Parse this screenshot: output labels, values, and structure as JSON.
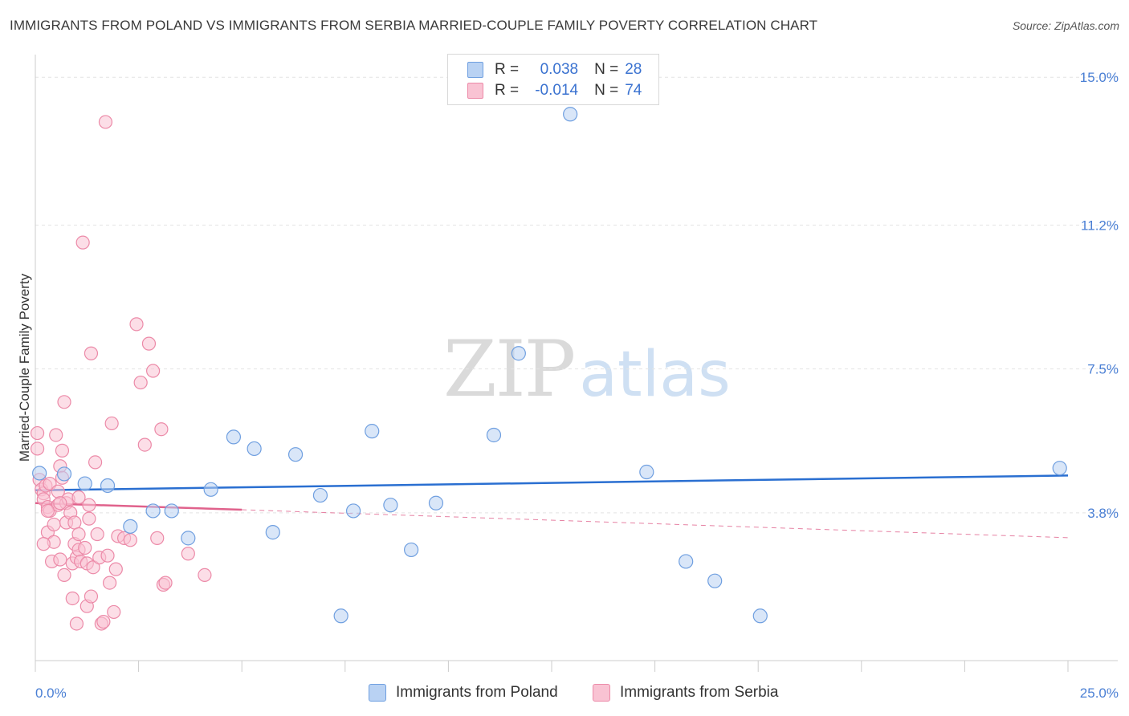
{
  "header": {
    "title": "IMMIGRANTS FROM POLAND VS IMMIGRANTS FROM SERBIA MARRIED-COUPLE FAMILY POVERTY CORRELATION CHART",
    "source": "Source: ZipAtlas.com"
  },
  "watermark": {
    "zip": "ZIP",
    "atlas": "atlas"
  },
  "legend": {
    "poland": {
      "r_label": "R =",
      "r_value": "0.038",
      "n_label": "N =",
      "n_value": "28"
    },
    "serbia": {
      "r_label": "R =",
      "r_value": "-0.014",
      "n_label": "N =",
      "n_value": "74"
    }
  },
  "bottom_legend": {
    "poland": "Immigrants from Poland",
    "serbia": "Immigrants from Serbia"
  },
  "colors": {
    "poland_fill": "#b9d2f3",
    "poland_stroke": "#6f9fe0",
    "poland_line": "#2a6fd1",
    "serbia_fill": "#f9c3d3",
    "serbia_stroke": "#ec8aa8",
    "serbia_line": "#e0628c",
    "grid": "#e4e4e4",
    "tick_text": "#4a7fd4"
  },
  "chart_data": {
    "type": "scatter",
    "title": "IMMIGRANTS FROM POLAND VS IMMIGRANTS FROM SERBIA MARRIED-COUPLE FAMILY POVERTY CORRELATION CHART",
    "xlabel": "",
    "ylabel": "Married-Couple Family Poverty",
    "xlim": [
      0,
      25
    ],
    "ylim": [
      0,
      15.5
    ],
    "x_tick_labels": [
      "0.0%",
      "25.0%"
    ],
    "y_ticks": [
      3.8,
      7.5,
      11.2,
      15.0
    ],
    "y_tick_labels": [
      "3.8%",
      "7.5%",
      "11.2%",
      "15.0%"
    ],
    "grid": true,
    "series": [
      {
        "name": "Immigrants from Poland",
        "trend": {
          "x0": 0,
          "y0": 4.38,
          "x1": 25,
          "y1": 4.76
        },
        "points": [
          [
            0.1,
            4.82
          ],
          [
            0.7,
            4.8
          ],
          [
            1.2,
            4.55
          ],
          [
            1.75,
            4.5
          ],
          [
            2.3,
            3.45
          ],
          [
            2.85,
            3.85
          ],
          [
            3.3,
            3.85
          ],
          [
            3.7,
            3.15
          ],
          [
            4.25,
            4.4
          ],
          [
            4.8,
            5.75
          ],
          [
            5.3,
            5.45
          ],
          [
            5.75,
            3.3
          ],
          [
            6.3,
            5.3
          ],
          [
            6.9,
            4.25
          ],
          [
            7.4,
            1.15
          ],
          [
            7.7,
            3.85
          ],
          [
            8.15,
            5.9
          ],
          [
            8.6,
            4.0
          ],
          [
            9.1,
            2.85
          ],
          [
            9.7,
            4.05
          ],
          [
            11.1,
            5.8
          ],
          [
            11.7,
            7.9
          ],
          [
            12.95,
            14.05
          ],
          [
            14.8,
            4.85
          ],
          [
            15.75,
            2.55
          ],
          [
            16.45,
            2.05
          ],
          [
            17.55,
            1.15
          ],
          [
            24.8,
            4.95
          ]
        ]
      },
      {
        "name": "Immigrants from Serbia",
        "trend_solid": {
          "x0": 0,
          "y0": 4.05,
          "x1": 5.0,
          "y1": 3.88
        },
        "trend_dashed": {
          "x0": 5.0,
          "y0": 3.88,
          "x1": 25,
          "y1": 3.16
        },
        "points": [
          [
            0.05,
            5.85
          ],
          [
            0.05,
            5.45
          ],
          [
            0.1,
            4.65
          ],
          [
            0.15,
            4.4
          ],
          [
            0.2,
            4.3
          ],
          [
            0.2,
            4.15
          ],
          [
            0.25,
            4.5
          ],
          [
            0.3,
            3.95
          ],
          [
            0.3,
            3.3
          ],
          [
            0.35,
            4.55
          ],
          [
            0.35,
            3.85
          ],
          [
            0.4,
            2.55
          ],
          [
            0.45,
            3.5
          ],
          [
            0.45,
            3.05
          ],
          [
            0.5,
            5.8
          ],
          [
            0.55,
            4.35
          ],
          [
            0.55,
            4.0
          ],
          [
            0.6,
            5.0
          ],
          [
            0.6,
            2.6
          ],
          [
            0.65,
            4.7
          ],
          [
            0.65,
            5.4
          ],
          [
            0.7,
            6.65
          ],
          [
            0.7,
            2.2
          ],
          [
            0.75,
            4.05
          ],
          [
            0.75,
            3.55
          ],
          [
            0.8,
            4.15
          ],
          [
            0.85,
            3.8
          ],
          [
            0.9,
            2.5
          ],
          [
            0.9,
            1.6
          ],
          [
            0.95,
            3.55
          ],
          [
            0.95,
            3.0
          ],
          [
            1.0,
            2.65
          ],
          [
            1.0,
            0.95
          ],
          [
            1.05,
            2.85
          ],
          [
            1.05,
            4.2
          ],
          [
            1.1,
            2.55
          ],
          [
            1.15,
            10.75
          ],
          [
            1.2,
            2.9
          ],
          [
            1.25,
            1.4
          ],
          [
            1.25,
            2.5
          ],
          [
            1.3,
            3.65
          ],
          [
            1.3,
            4.0
          ],
          [
            1.35,
            1.65
          ],
          [
            1.35,
            7.9
          ],
          [
            1.4,
            2.4
          ],
          [
            1.45,
            5.1
          ],
          [
            1.5,
            3.25
          ],
          [
            1.55,
            2.65
          ],
          [
            1.6,
            0.95
          ],
          [
            1.65,
            1.0
          ],
          [
            1.7,
            13.85
          ],
          [
            1.75,
            2.7
          ],
          [
            1.8,
            2.0
          ],
          [
            1.85,
            6.1
          ],
          [
            1.9,
            1.25
          ],
          [
            1.95,
            2.35
          ],
          [
            2.0,
            3.2
          ],
          [
            2.15,
            3.15
          ],
          [
            2.3,
            3.1
          ],
          [
            2.45,
            8.65
          ],
          [
            2.55,
            7.15
          ],
          [
            2.65,
            5.55
          ],
          [
            2.75,
            8.15
          ],
          [
            2.85,
            7.45
          ],
          [
            2.95,
            3.15
          ],
          [
            3.05,
            5.95
          ],
          [
            3.1,
            1.95
          ],
          [
            3.15,
            2.0
          ],
          [
            3.7,
            2.75
          ],
          [
            4.1,
            2.2
          ],
          [
            0.3,
            3.85
          ],
          [
            0.6,
            4.05
          ],
          [
            1.05,
            3.25
          ],
          [
            0.2,
            3.0
          ]
        ]
      }
    ]
  }
}
